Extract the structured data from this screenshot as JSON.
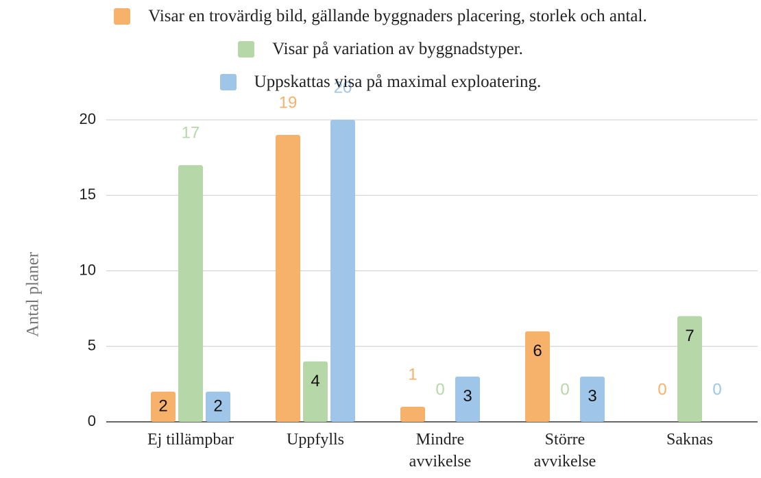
{
  "chart_data": {
    "type": "bar",
    "categories": [
      "Ej tillämpbar",
      "Uppfylls",
      "Mindre avvikelse",
      "Större avvikelse",
      "Saknas"
    ],
    "series": [
      {
        "name": "Visar en trovärdig bild, gällande byggnaders placering, storlek och antal.",
        "color": "#f6b26b",
        "values": [
          2,
          19,
          1,
          6,
          0
        ]
      },
      {
        "name": "Visar på variation av byggnadstyper.",
        "color": "#b6d7a8",
        "values": [
          17,
          4,
          0,
          0,
          7
        ]
      },
      {
        "name": "Uppskattas visa på maximal exploatering.",
        "color": "#9fc5e8",
        "values": [
          2,
          20,
          3,
          3,
          0
        ]
      }
    ],
    "ylabel": "Antal planer",
    "ylim": [
      0,
      20
    ],
    "yticks": [
      0,
      5,
      10,
      15,
      20
    ],
    "grid": true,
    "legend": "top"
  }
}
